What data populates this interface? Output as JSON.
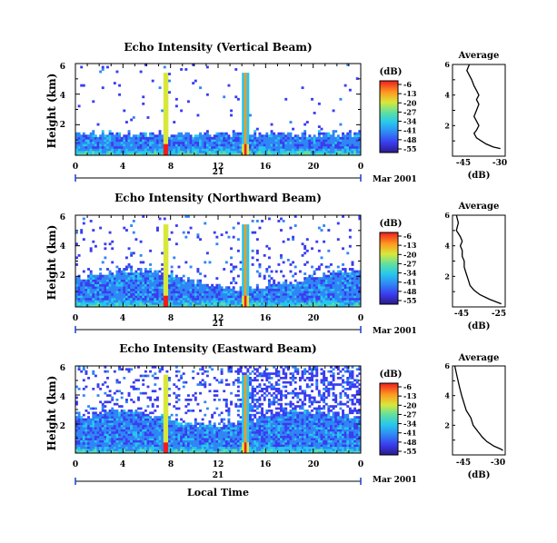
{
  "chart_data": [
    {
      "type": "heatmap",
      "title": "Echo Intensity (Vertical Beam)",
      "ylabel": "Height (km)",
      "yticks": [
        "6",
        "4",
        "2"
      ],
      "xticks": [
        "0",
        "4",
        "8",
        "12",
        "16",
        "20",
        "0"
      ],
      "date_day": "21",
      "date_label": "Mar 2001",
      "ylim": [
        0,
        6
      ],
      "xlim": [
        0,
        24
      ],
      "colorbar": {
        "unit": "(dB)",
        "ticks": [
          "-6",
          "-13",
          "-20",
          "-27",
          "-34",
          "-41",
          "-48",
          "-55"
        ]
      },
      "average": {
        "title": "Average",
        "xlabel": "(dB)",
        "xticks": [
          "-45",
          "-30"
        ],
        "xlim": [
          -50,
          -28
        ],
        "profile": [
          [
            -43,
            6.0
          ],
          [
            -44,
            5.6
          ],
          [
            -43,
            5.3
          ],
          [
            -42,
            5.0
          ],
          [
            -41,
            4.6
          ],
          [
            -40,
            4.3
          ],
          [
            -39,
            4.0
          ],
          [
            -40,
            3.7
          ],
          [
            -39,
            3.4
          ],
          [
            -40,
            3.0
          ],
          [
            -41,
            2.6
          ],
          [
            -40,
            2.3
          ],
          [
            -39,
            2.0
          ],
          [
            -40,
            1.7
          ],
          [
            -41,
            1.5
          ],
          [
            -40,
            1.2
          ],
          [
            -38,
            1.0
          ],
          [
            -36,
            0.8
          ],
          [
            -33,
            0.6
          ],
          [
            -30,
            0.5
          ]
        ]
      }
    },
    {
      "type": "heatmap",
      "title": "Echo Intensity (Northward Beam)",
      "ylabel": "Height (km)",
      "yticks": [
        "6",
        "4",
        "2"
      ],
      "xticks": [
        "0",
        "4",
        "8",
        "12",
        "16",
        "20",
        "0"
      ],
      "date_day": "21",
      "date_label": "Mar 2001",
      "ylim": [
        0,
        6
      ],
      "xlim": [
        0,
        24
      ],
      "colorbar": {
        "unit": "(dB)",
        "ticks": [
          "-6",
          "-13",
          "-20",
          "-27",
          "-34",
          "-41",
          "-48",
          "-55"
        ]
      },
      "average": {
        "title": "Average",
        "xlabel": "(dB)",
        "xticks": [
          "-45",
          "-25"
        ],
        "xlim": [
          -49,
          -22
        ],
        "profile": [
          [
            -47,
            6.0
          ],
          [
            -46,
            5.5
          ],
          [
            -47,
            5.0
          ],
          [
            -45,
            4.6
          ],
          [
            -44,
            4.3
          ],
          [
            -45,
            4.0
          ],
          [
            -44,
            3.7
          ],
          [
            -44,
            3.3
          ],
          [
            -43,
            3.0
          ],
          [
            -43,
            2.6
          ],
          [
            -42,
            2.2
          ],
          [
            -41,
            1.8
          ],
          [
            -40,
            1.4
          ],
          [
            -38,
            1.1
          ],
          [
            -35,
            0.8
          ],
          [
            -30,
            0.5
          ],
          [
            -24,
            0.2
          ]
        ]
      }
    },
    {
      "type": "heatmap",
      "title": "Echo Intensity (Eastward Beam)",
      "ylabel": "Height (km)",
      "yticks": [
        "6",
        "4",
        "2"
      ],
      "xticks": [
        "0",
        "4",
        "8",
        "12",
        "16",
        "20",
        "0"
      ],
      "date_day": "21",
      "date_label": "Mar 2001",
      "xlabel": "Local Time",
      "ylim": [
        0,
        6
      ],
      "xlim": [
        0,
        24
      ],
      "colorbar": {
        "unit": "(dB)",
        "ticks": [
          "-6",
          "-13",
          "-20",
          "-27",
          "-34",
          "-41",
          "-48",
          "-55"
        ]
      },
      "average": {
        "title": "Average",
        "xlabel": "(dB)",
        "xticks": [
          "-45",
          "-30"
        ],
        "xlim": [
          -50,
          -27
        ],
        "profile": [
          [
            -49,
            6.0
          ],
          [
            -48,
            5.3
          ],
          [
            -47,
            4.6
          ],
          [
            -46,
            4.0
          ],
          [
            -45,
            3.5
          ],
          [
            -44,
            3.0
          ],
          [
            -42,
            2.5
          ],
          [
            -41,
            2.0
          ],
          [
            -39,
            1.6
          ],
          [
            -37,
            1.2
          ],
          [
            -35,
            0.9
          ],
          [
            -32,
            0.6
          ],
          [
            -29,
            0.4
          ],
          [
            -28,
            0.3
          ]
        ]
      }
    }
  ]
}
